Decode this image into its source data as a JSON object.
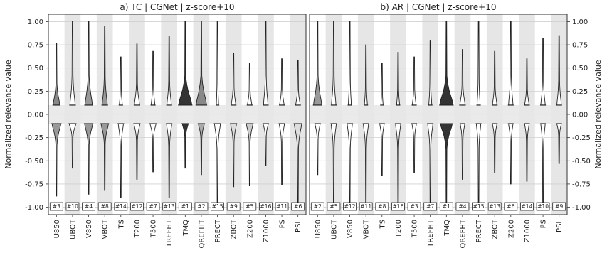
{
  "chart_data": [
    {
      "type": "violin",
      "title": "a) TC | CGNet | z-score+10",
      "ylabel": "Normalized relevance value",
      "ylim": [
        -1.08,
        1.08
      ],
      "yticks": [
        "1.00",
        "0.75",
        "0.50",
        "0.25",
        "0.00",
        "-0.25",
        "-0.50",
        "-0.75",
        "-1.00"
      ],
      "ytick_values": [
        1.0,
        0.75,
        0.5,
        0.25,
        0.0,
        -0.25,
        -0.5,
        -0.75,
        -1.0
      ],
      "categories": [
        "U850",
        "UBOT",
        "V850",
        "VBOT",
        "TS",
        "T200",
        "T500",
        "TREFHT",
        "TMQ",
        "QREFHT",
        "PRECT",
        "ZBOT",
        "Z200",
        "Z1000",
        "PS",
        "PSL"
      ],
      "ranks": [
        "#3",
        "#10",
        "#4",
        "#8",
        "#14",
        "#12",
        "#7",
        "#13",
        "#1",
        "#2",
        "#15",
        "#9",
        "#5",
        "#16",
        "#11",
        "#6"
      ],
      "pos_max": [
        0.77,
        1.0,
        1.0,
        0.95,
        0.62,
        0.76,
        0.68,
        0.84,
        1.0,
        1.0,
        1.0,
        0.66,
        0.55,
        1.0,
        0.6,
        0.58
      ],
      "neg_min": [
        -0.88,
        -0.58,
        -0.86,
        -0.82,
        -0.9,
        -0.7,
        -0.62,
        -0.9,
        -0.58,
        -0.65,
        -1.0,
        -0.78,
        -0.77,
        -0.55,
        -0.76,
        -1.0
      ],
      "pos_width": [
        0.45,
        0.35,
        0.5,
        0.35,
        0.2,
        0.35,
        0.25,
        0.3,
        0.9,
        0.7,
        0.15,
        0.3,
        0.3,
        0.3,
        0.3,
        0.3
      ],
      "neg_width": [
        0.6,
        0.45,
        0.55,
        0.5,
        0.35,
        0.4,
        0.4,
        0.35,
        0.4,
        0.4,
        0.4,
        0.4,
        0.45,
        0.35,
        0.35,
        0.5
      ],
      "pos_shade": [
        "#888888",
        "#ffffff",
        "#999999",
        "#999999",
        "#ffffff",
        "#ffffff",
        "#ffffff",
        "#ffffff",
        "#333333",
        "#888888",
        "#ffffff",
        "#ffffff",
        "#ffffff",
        "#ffffff",
        "#ffffff",
        "#ffffff"
      ],
      "neg_shade": [
        "#999999",
        "#ffffff",
        "#999999",
        "#999999",
        "#ffffff",
        "#ffffff",
        "#ffffff",
        "#ffffff",
        "#333333",
        "#aaaaaa",
        "#ffffff",
        "#dddddd",
        "#cccccc",
        "#ffffff",
        "#ffffff",
        "#dddddd"
      ]
    },
    {
      "type": "violin",
      "title": "b) AR | CGNet | z-score+10",
      "ylabel": "Normalized relevance value",
      "ylim": [
        -1.08,
        1.08
      ],
      "yticks": [
        "1.00",
        "0.75",
        "0.50",
        "0.25",
        "0.00",
        "-0.25",
        "-0.50",
        "-0.75",
        "-1.00"
      ],
      "ytick_values": [
        1.0,
        0.75,
        0.5,
        0.25,
        0.0,
        -0.25,
        -0.5,
        -0.75,
        -1.0
      ],
      "categories": [
        "U850",
        "UBOT",
        "V850",
        "VBOT",
        "TS",
        "T200",
        "T500",
        "TREFHT",
        "TMQ",
        "QREFHT",
        "PRECT",
        "ZBOT",
        "Z200",
        "Z1000",
        "PS",
        "PSL"
      ],
      "ranks": [
        "#2",
        "#5",
        "#12",
        "#11",
        "#8",
        "#16",
        "#3",
        "#7",
        "#1",
        "#4",
        "#15",
        "#13",
        "#6",
        "#14",
        "#10",
        "#9"
      ],
      "pos_max": [
        1.0,
        1.0,
        1.0,
        0.75,
        0.55,
        0.67,
        0.62,
        0.8,
        1.0,
        0.7,
        1.0,
        0.68,
        1.0,
        0.6,
        0.82,
        0.85
      ],
      "neg_min": [
        -0.65,
        -1.0,
        -1.0,
        -1.0,
        -0.66,
        -1.0,
        -0.63,
        -1.0,
        -1.0,
        -0.7,
        -1.0,
        -0.63,
        -0.75,
        -0.72,
        -1.0,
        -0.53
      ],
      "pos_width": [
        0.55,
        0.3,
        0.2,
        0.2,
        0.15,
        0.2,
        0.25,
        0.2,
        0.9,
        0.35,
        0.2,
        0.3,
        0.3,
        0.3,
        0.3,
        0.3
      ],
      "neg_width": [
        0.35,
        0.35,
        0.35,
        0.35,
        0.3,
        0.35,
        0.3,
        0.35,
        0.8,
        0.3,
        0.3,
        0.3,
        0.3,
        0.3,
        0.3,
        0.3
      ],
      "pos_shade": [
        "#999999",
        "#ffffff",
        "#ffffff",
        "#ffffff",
        "#ffffff",
        "#ffffff",
        "#ffffff",
        "#ffffff",
        "#333333",
        "#ffffff",
        "#ffffff",
        "#ffffff",
        "#ffffff",
        "#ffffff",
        "#ffffff",
        "#ffffff"
      ],
      "neg_shade": [
        "#ffffff",
        "#ffffff",
        "#ffffff",
        "#ffffff",
        "#ffffff",
        "#ffffff",
        "#ffffff",
        "#ffffff",
        "#333333",
        "#ffffff",
        "#ffffff",
        "#ffffff",
        "#ffffff",
        "#ffffff",
        "#ffffff",
        "#ffffff"
      ]
    }
  ],
  "colors": {
    "stripe": "#e6e6e6",
    "zero_band": "#e6e6e6",
    "grid": "#d0d0d0",
    "frame": "#333333",
    "violin_edge": "#222222"
  }
}
